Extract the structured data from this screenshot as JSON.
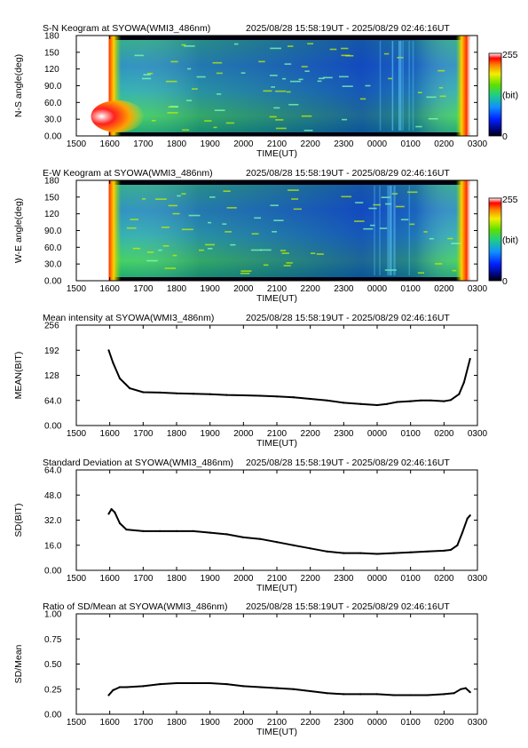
{
  "time_axis": {
    "label": "TIME(UT)",
    "ticks": [
      "1500",
      "1600",
      "1700",
      "1800",
      "1900",
      "2000",
      "2100",
      "2200",
      "2300",
      "0000",
      "0100",
      "0200",
      "0300"
    ]
  },
  "chart_data": [
    {
      "type": "heatmap",
      "title": "S-N Keogram at SYOWA(WMI3_486nm)",
      "time_range": "2025/08/28 15:58:19UT - 2025/08/29 02:46:16UT",
      "xlabel": "TIME(UT)",
      "ylabel": "N-S angle(deg)",
      "ylim": [
        0,
        180
      ],
      "yticks": [
        "0.00",
        "30.0",
        "60.0",
        "90.0",
        "120",
        "150",
        "180"
      ],
      "colorbar": {
        "min_label": "0",
        "max_label": "255",
        "unit": "(bit)"
      }
    },
    {
      "type": "heatmap",
      "title": "E-W Keogram at SYOWA(WMI3_486nm)",
      "time_range": "2025/08/28 15:58:19UT - 2025/08/29 02:46:16UT",
      "xlabel": "TIME(UT)",
      "ylabel": "W-E angle(deg)",
      "ylim": [
        0,
        180
      ],
      "yticks": [
        "0.00",
        "30.0",
        "60.0",
        "90.0",
        "120",
        "150",
        "180"
      ],
      "colorbar": {
        "min_label": "0",
        "max_label": "255",
        "unit": "(bit)"
      }
    },
    {
      "type": "line",
      "title": "Mean intensity at SYOWA(WMI3_486nm)",
      "time_range": "2025/08/28 15:58:19UT - 2025/08/29 02:46:16UT",
      "xlabel": "TIME(UT)",
      "ylabel": "MEAN(BIT)",
      "ylim": [
        0,
        256
      ],
      "yticks": [
        "0.00",
        "64.0",
        "128",
        "192",
        "256"
      ],
      "x": [
        15.97,
        16.1,
        16.3,
        16.6,
        17.0,
        17.5,
        18.0,
        18.5,
        19.0,
        19.5,
        20.0,
        20.5,
        21.0,
        21.5,
        22.0,
        22.5,
        23.0,
        23.5,
        24.0,
        24.3,
        24.6,
        25.0,
        25.3,
        25.6,
        26.0,
        26.2,
        26.45,
        26.6,
        26.78
      ],
      "y": [
        192,
        160,
        120,
        95,
        85,
        84,
        82,
        81,
        80,
        78,
        77,
        76,
        74,
        72,
        68,
        64,
        58,
        55,
        52,
        55,
        60,
        62,
        64,
        64,
        62,
        65,
        80,
        110,
        170
      ]
    },
    {
      "type": "line",
      "title": "Standard Deviation at SYOWA(WMI3_486nm)",
      "time_range": "2025/08/28 15:58:19UT - 2025/08/29 02:46:16UT",
      "xlabel": "TIME(UT)",
      "ylabel": "SD(BIT)",
      "ylim": [
        0,
        64
      ],
      "yticks": [
        "0.00",
        "16.0",
        "32.0",
        "48.0",
        "64.0"
      ],
      "x": [
        15.97,
        16.05,
        16.15,
        16.3,
        16.5,
        17.0,
        17.5,
        18.0,
        18.5,
        19.0,
        19.5,
        20.0,
        20.5,
        21.0,
        21.5,
        22.0,
        22.5,
        23.0,
        23.5,
        24.0,
        24.5,
        25.0,
        25.5,
        26.0,
        26.2,
        26.4,
        26.55,
        26.7,
        26.78
      ],
      "y": [
        36,
        39,
        37,
        30,
        26,
        25,
        25,
        25,
        25,
        24,
        23,
        21,
        20,
        18,
        16,
        14,
        12,
        11,
        11,
        10.5,
        11,
        11.5,
        12,
        12.5,
        13,
        16,
        24,
        33,
        35
      ]
    },
    {
      "type": "line",
      "title": "Ratio of SD/Mean at SYOWA(WMI3_486nm)",
      "time_range": "2025/08/28 15:58:19UT - 2025/08/29 02:46:16UT",
      "xlabel": "TIME(UT)",
      "ylabel": "SD/Mean",
      "ylim": [
        0,
        1
      ],
      "yticks": [
        "0.00",
        "0.25",
        "0.50",
        "0.75",
        "1.00"
      ],
      "x": [
        15.97,
        16.1,
        16.3,
        16.5,
        17.0,
        17.5,
        18.0,
        18.5,
        19.0,
        19.5,
        20.0,
        20.5,
        21.0,
        21.5,
        22.0,
        22.5,
        23.0,
        23.5,
        24.0,
        24.5,
        25.0,
        25.5,
        26.0,
        26.3,
        26.5,
        26.65,
        26.78
      ],
      "y": [
        0.19,
        0.24,
        0.27,
        0.27,
        0.28,
        0.3,
        0.31,
        0.31,
        0.31,
        0.3,
        0.28,
        0.27,
        0.26,
        0.25,
        0.23,
        0.21,
        0.2,
        0.2,
        0.2,
        0.19,
        0.19,
        0.19,
        0.2,
        0.21,
        0.25,
        0.26,
        0.22
      ]
    }
  ]
}
